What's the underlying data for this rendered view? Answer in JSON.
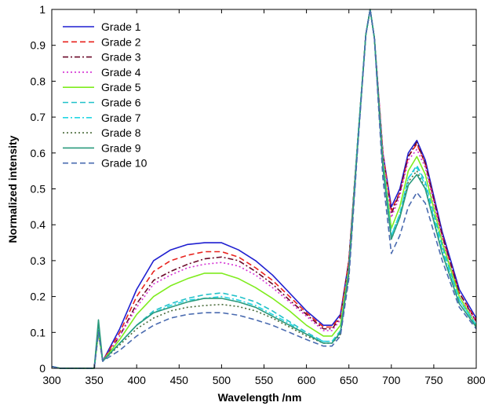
{
  "chart_data": {
    "type": "line",
    "title": "",
    "xlabel": "Wavelength /nm",
    "ylabel": "Normalized intensity",
    "xlim": [
      300,
      800
    ],
    "ylim": [
      0,
      1
    ],
    "xticks": [
      300,
      350,
      400,
      450,
      500,
      550,
      600,
      650,
      700,
      750,
      800
    ],
    "yticks": [
      0,
      0.1,
      0.2,
      0.3,
      0.4,
      0.5,
      0.6,
      0.7,
      0.8,
      0.9,
      1
    ],
    "grid": false,
    "legend_position": "top-left",
    "series": [
      {
        "name": "Grade 1",
        "color": "#1f1fd0",
        "dash": "solid",
        "x": [
          300,
          310,
          350,
          355,
          360,
          380,
          400,
          420,
          440,
          460,
          480,
          500,
          520,
          540,
          560,
          580,
          600,
          620,
          630,
          640,
          650,
          660,
          670,
          675,
          680,
          690,
          700,
          710,
          720,
          730,
          740,
          760,
          780,
          800
        ],
        "y": [
          0.005,
          0,
          0,
          0.11,
          0.02,
          0.11,
          0.22,
          0.3,
          0.33,
          0.345,
          0.35,
          0.35,
          0.33,
          0.3,
          0.26,
          0.21,
          0.16,
          0.12,
          0.12,
          0.15,
          0.3,
          0.62,
          0.93,
          1.0,
          0.92,
          0.6,
          0.45,
          0.5,
          0.6,
          0.635,
          0.58,
          0.38,
          0.22,
          0.14
        ]
      },
      {
        "name": "Grade 2",
        "color": "#e8231e",
        "dash": "dashed",
        "x": [
          300,
          310,
          350,
          355,
          360,
          380,
          400,
          420,
          440,
          460,
          480,
          500,
          520,
          540,
          560,
          580,
          600,
          620,
          630,
          640,
          650,
          660,
          670,
          675,
          680,
          690,
          700,
          710,
          720,
          730,
          740,
          760,
          780,
          800
        ],
        "y": [
          0.005,
          0,
          0,
          0.1,
          0.02,
          0.1,
          0.2,
          0.27,
          0.3,
          0.315,
          0.325,
          0.325,
          0.31,
          0.28,
          0.245,
          0.2,
          0.155,
          0.115,
          0.115,
          0.145,
          0.3,
          0.62,
          0.93,
          1.0,
          0.92,
          0.6,
          0.44,
          0.49,
          0.59,
          0.625,
          0.57,
          0.37,
          0.21,
          0.135
        ]
      },
      {
        "name": "Grade 3",
        "color": "#6b0a2a",
        "dash": "dashdot",
        "x": [
          300,
          310,
          350,
          355,
          360,
          380,
          400,
          420,
          440,
          460,
          480,
          500,
          520,
          540,
          560,
          580,
          600,
          620,
          630,
          640,
          650,
          660,
          670,
          675,
          680,
          690,
          700,
          710,
          720,
          730,
          740,
          760,
          780,
          800
        ],
        "y": [
          0.005,
          0,
          0,
          0.1,
          0.02,
          0.09,
          0.18,
          0.245,
          0.27,
          0.29,
          0.305,
          0.31,
          0.3,
          0.27,
          0.235,
          0.19,
          0.15,
          0.11,
          0.11,
          0.14,
          0.3,
          0.62,
          0.93,
          1.0,
          0.92,
          0.6,
          0.43,
          0.49,
          0.59,
          0.63,
          0.57,
          0.37,
          0.21,
          0.13
        ]
      },
      {
        "name": "Grade 4",
        "color": "#d42fd4",
        "dash": "dotted",
        "x": [
          300,
          310,
          350,
          355,
          360,
          380,
          400,
          420,
          440,
          460,
          480,
          500,
          520,
          540,
          560,
          580,
          600,
          620,
          630,
          640,
          650,
          660,
          670,
          675,
          680,
          690,
          700,
          710,
          720,
          730,
          740,
          760,
          780,
          800
        ],
        "y": [
          0.005,
          0,
          0,
          0.1,
          0.02,
          0.09,
          0.17,
          0.235,
          0.26,
          0.28,
          0.29,
          0.295,
          0.285,
          0.26,
          0.225,
          0.185,
          0.145,
          0.105,
          0.105,
          0.135,
          0.29,
          0.62,
          0.93,
          1.0,
          0.92,
          0.6,
          0.42,
          0.48,
          0.58,
          0.61,
          0.56,
          0.36,
          0.2,
          0.13
        ]
      },
      {
        "name": "Grade 5",
        "color": "#7fec1e",
        "dash": "solid",
        "x": [
          300,
          310,
          350,
          355,
          360,
          380,
          400,
          420,
          440,
          460,
          480,
          500,
          520,
          540,
          560,
          580,
          600,
          620,
          630,
          640,
          650,
          660,
          670,
          675,
          680,
          690,
          700,
          710,
          720,
          730,
          740,
          760,
          780,
          800
        ],
        "y": [
          0.005,
          0,
          0,
          0.1,
          0.02,
          0.08,
          0.15,
          0.2,
          0.23,
          0.25,
          0.265,
          0.265,
          0.25,
          0.225,
          0.195,
          0.16,
          0.12,
          0.09,
          0.09,
          0.12,
          0.28,
          0.62,
          0.93,
          1.0,
          0.92,
          0.58,
          0.39,
          0.45,
          0.55,
          0.59,
          0.54,
          0.35,
          0.2,
          0.12
        ]
      },
      {
        "name": "Grade 6",
        "color": "#21c1c9",
        "dash": "dashed",
        "x": [
          300,
          310,
          350,
          355,
          360,
          380,
          400,
          420,
          440,
          460,
          480,
          500,
          520,
          540,
          560,
          580,
          600,
          620,
          630,
          640,
          650,
          660,
          670,
          675,
          680,
          690,
          700,
          710,
          720,
          730,
          740,
          760,
          780,
          800
        ],
        "y": [
          0.005,
          0,
          0,
          0.11,
          0.02,
          0.07,
          0.12,
          0.16,
          0.18,
          0.195,
          0.205,
          0.21,
          0.2,
          0.185,
          0.16,
          0.13,
          0.1,
          0.075,
          0.075,
          0.105,
          0.27,
          0.62,
          0.93,
          1.0,
          0.92,
          0.57,
          0.37,
          0.43,
          0.53,
          0.565,
          0.52,
          0.34,
          0.19,
          0.12
        ]
      },
      {
        "name": "Grade 7",
        "color": "#22d6e4",
        "dash": "dashdot",
        "x": [
          300,
          310,
          350,
          355,
          360,
          380,
          400,
          420,
          440,
          460,
          480,
          500,
          520,
          540,
          560,
          580,
          600,
          620,
          630,
          640,
          650,
          660,
          670,
          675,
          680,
          690,
          700,
          710,
          720,
          730,
          740,
          760,
          780,
          800
        ],
        "y": [
          0.005,
          0,
          0,
          0.11,
          0.02,
          0.07,
          0.12,
          0.155,
          0.175,
          0.19,
          0.195,
          0.2,
          0.19,
          0.175,
          0.15,
          0.125,
          0.095,
          0.075,
          0.075,
          0.1,
          0.27,
          0.62,
          0.93,
          1.0,
          0.92,
          0.57,
          0.37,
          0.43,
          0.53,
          0.56,
          0.51,
          0.33,
          0.19,
          0.12
        ]
      },
      {
        "name": "Grade 8",
        "color": "#4a6b3a",
        "dash": "dotted",
        "x": [
          300,
          310,
          350,
          355,
          360,
          380,
          400,
          420,
          440,
          460,
          480,
          500,
          520,
          540,
          560,
          580,
          600,
          620,
          630,
          640,
          650,
          660,
          670,
          675,
          680,
          690,
          700,
          710,
          720,
          730,
          740,
          760,
          780,
          800
        ],
        "y": [
          0.005,
          0,
          0,
          0.12,
          0.02,
          0.065,
          0.11,
          0.14,
          0.16,
          0.17,
          0.175,
          0.178,
          0.172,
          0.16,
          0.14,
          0.115,
          0.09,
          0.07,
          0.07,
          0.095,
          0.26,
          0.61,
          0.93,
          1.0,
          0.92,
          0.56,
          0.36,
          0.42,
          0.52,
          0.55,
          0.5,
          0.32,
          0.18,
          0.115
        ]
      },
      {
        "name": "Grade 9",
        "color": "#2a9a7d",
        "dash": "solid",
        "x": [
          300,
          310,
          350,
          355,
          360,
          380,
          400,
          420,
          440,
          460,
          480,
          500,
          520,
          540,
          560,
          580,
          600,
          620,
          630,
          640,
          650,
          660,
          670,
          675,
          680,
          690,
          700,
          710,
          720,
          730,
          740,
          760,
          780,
          800
        ],
        "y": [
          0.005,
          0,
          0,
          0.135,
          0.02,
          0.07,
          0.12,
          0.155,
          0.17,
          0.185,
          0.195,
          0.195,
          0.185,
          0.17,
          0.145,
          0.12,
          0.095,
          0.07,
          0.07,
          0.1,
          0.27,
          0.61,
          0.93,
          1.0,
          0.92,
          0.56,
          0.36,
          0.42,
          0.51,
          0.54,
          0.5,
          0.32,
          0.18,
          0.115
        ]
      },
      {
        "name": "Grade 10",
        "color": "#4a6bb0",
        "dash": "dashed",
        "x": [
          300,
          310,
          350,
          355,
          360,
          380,
          400,
          420,
          440,
          460,
          480,
          500,
          520,
          540,
          560,
          580,
          600,
          620,
          630,
          640,
          650,
          660,
          670,
          675,
          680,
          690,
          700,
          710,
          720,
          730,
          740,
          760,
          780,
          800
        ],
        "y": [
          0.005,
          0,
          0,
          0.1,
          0.02,
          0.05,
          0.09,
          0.12,
          0.14,
          0.15,
          0.155,
          0.155,
          0.148,
          0.135,
          0.12,
          0.1,
          0.08,
          0.062,
          0.062,
          0.09,
          0.25,
          0.6,
          0.93,
          1.0,
          0.92,
          0.53,
          0.32,
          0.37,
          0.45,
          0.49,
          0.46,
          0.3,
          0.17,
          0.11
        ]
      }
    ]
  }
}
